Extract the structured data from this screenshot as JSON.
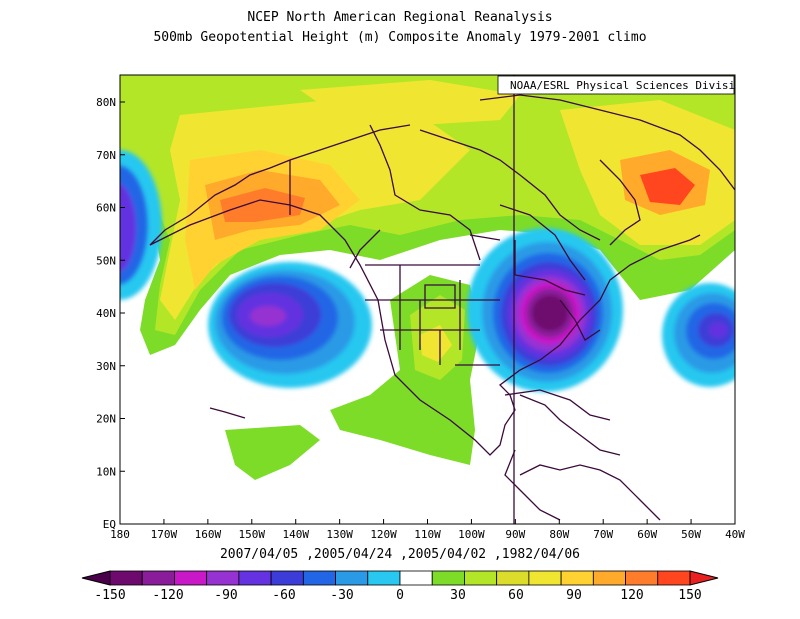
{
  "title_line1": "NCEP North American Regional Reanalysis",
  "title_line2": "500mb Geopotential Height (m) Composite Anomaly 1979-2001 climo",
  "credit": "NOAA/ESRL Physical Sciences Division",
  "dates": "2007/04/05 ,2005/04/24 ,2005/04/02 ,1982/04/06",
  "lon_labels": [
    "180",
    "170W",
    "160W",
    "150W",
    "140W",
    "130W",
    "120W",
    "110W",
    "100W",
    "90W",
    "80W",
    "70W",
    "60W",
    "50W",
    "40W"
  ],
  "lat_labels": [
    "EQ",
    "10N",
    "20N",
    "30N",
    "40N",
    "50N",
    "60N",
    "70N",
    "80N"
  ],
  "colorbar": {
    "labels": [
      "-150",
      "-120",
      "-90",
      "-60",
      "-30",
      "0",
      "30",
      "60",
      "90",
      "120",
      "150"
    ],
    "colors": [
      "#6e0a6e",
      "#8a1e9a",
      "#c818c8",
      "#9632d2",
      "#6432e0",
      "#3c3cd8",
      "#2266e6",
      "#2a9ae6",
      "#28c8f0",
      "#ffffff",
      "#7ddc28",
      "#b4e628",
      "#dcdc2a",
      "#f0e632",
      "#ffd232",
      "#ffaa2a",
      "#ff7d2a",
      "#ff461e"
    ]
  },
  "colors": {
    "outline": "#3a0a3a",
    "frame": "#000000"
  }
}
